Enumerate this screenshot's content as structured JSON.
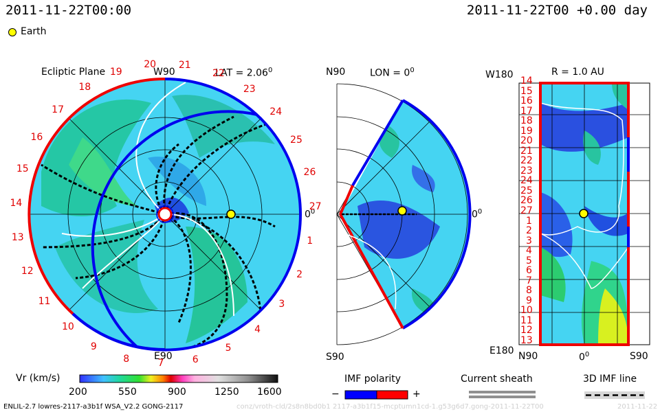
{
  "header": {
    "left_time": "2011-11-22T00:00",
    "right_time": "2011-11-22T00 +0.00 day",
    "legend_marker": "Earth"
  },
  "colors": {
    "solar_wind_fast": "#40d8f0",
    "solar_wind_slow": "#22c3a0",
    "polarity_negative": "#0000ff",
    "polarity_positive": "#ff0000",
    "earth": "#ffff00"
  },
  "panels": {
    "ecliptic": {
      "title": "Ecliptic Plane",
      "top_label": "W90",
      "lat_label": "LAT = 2.06",
      "lat_unit": "0",
      "bottom_label": "E90",
      "right_label": "0",
      "right_label_unit": "0",
      "carrington_labels": [
        "20",
        "21",
        "22",
        "23",
        "24",
        "25",
        "26",
        "27",
        "1",
        "2",
        "3",
        "4",
        "5",
        "6",
        "7",
        "8",
        "9",
        "10",
        "11",
        "12",
        "13",
        "14",
        "15",
        "16",
        "17",
        "18",
        "19"
      ]
    },
    "meridional": {
      "top_label": "N90",
      "lon_label": "LON = 0",
      "lon_unit": "0",
      "bottom_label": "S90",
      "right_label": "0",
      "right_label_unit": "0"
    },
    "radial": {
      "title": "R = 1.0 AU",
      "top_left_label": "W180",
      "bottom_left_label": "E180",
      "bottom_labels": [
        "N90",
        "0",
        "S90"
      ],
      "bottom_mid_unit": "0",
      "row_labels": [
        "14",
        "15",
        "16",
        "17",
        "18",
        "19",
        "20",
        "21",
        "22",
        "23",
        "24",
        "25",
        "26",
        "27",
        "1",
        "2",
        "3",
        "4",
        "5",
        "6",
        "7",
        "8",
        "9",
        "10",
        "11",
        "12",
        "13"
      ]
    }
  },
  "colorbar": {
    "label": "Vr (km/s)",
    "ticks": [
      "200",
      "550",
      "900",
      "1250",
      "1600"
    ],
    "min": 200,
    "max": 1600
  },
  "legends": {
    "imf_polarity": "IMF polarity",
    "minus": "−",
    "plus": "+",
    "current_sheath": "Current sheath",
    "imf_line": "3D IMF line"
  },
  "footer": {
    "run_info": "ENLIL-2.7 lowres-2117-a3b1f WSA_V2.2 GONG-2117",
    "watermark": "conz/vroth-cld/2s8n8bd0b1 2117-a3b1f15-mcptumn1cd-1.g53g6d7.gong-2011-11-22T00",
    "watermark_right": "2011-11-22"
  },
  "chart_data": {
    "type": "heatmap",
    "variable": "Vr (km/s)",
    "range": [
      200,
      1600
    ],
    "time": "2011-11-22T00:00",
    "earth_lat_deg": 2.06,
    "panels": [
      "Ecliptic Plane",
      "LON = 0",
      "R = 1.0 AU"
    ]
  }
}
